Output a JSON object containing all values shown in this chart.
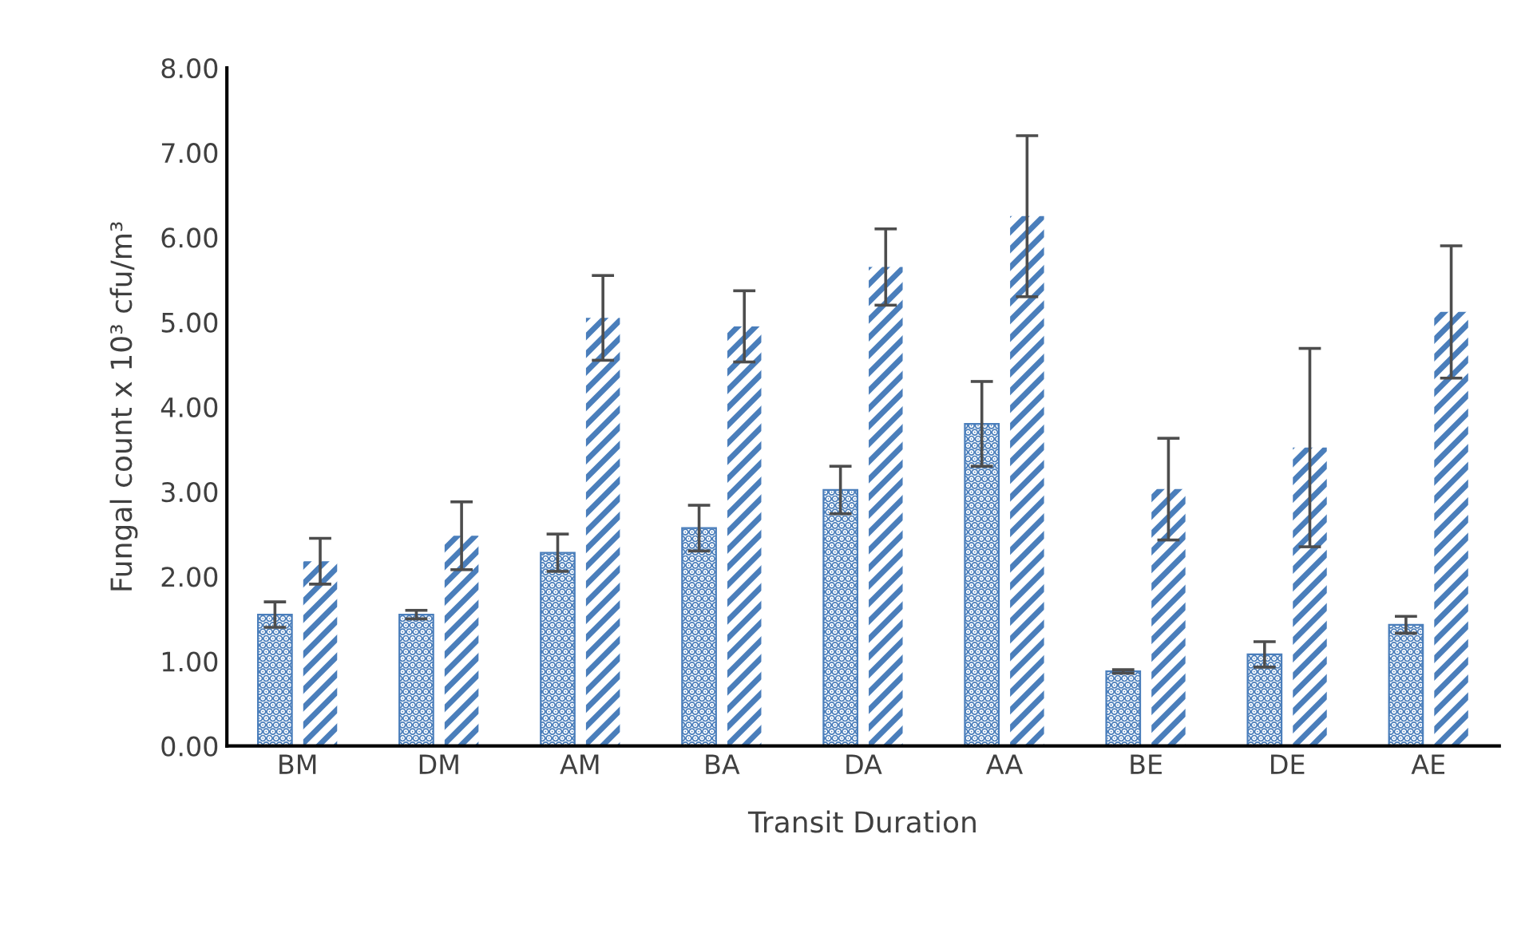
{
  "chart_data": {
    "type": "bar",
    "xlabel": "Transit Duration",
    "ylabel": "Fungal count x 10³ cfu/m³",
    "categories": [
      "BM",
      "DM",
      "AM",
      "BA",
      "DA",
      "AA",
      "BE",
      "DE",
      "AE"
    ],
    "series": [
      {
        "color": "#4a7ebb",
        "values": [
          1.55,
          1.55,
          2.28,
          2.57,
          3.02,
          3.8,
          0.88,
          1.08,
          1.43
        ],
        "errors": [
          0.15,
          0.05,
          0.22,
          0.27,
          0.28,
          0.5,
          0.02,
          0.15,
          0.1
        ]
      },
      {
        "color": "#4a7ebb",
        "values": [
          2.18,
          2.48,
          5.05,
          4.95,
          5.65,
          6.25,
          3.03,
          3.52,
          5.12
        ],
        "errors": [
          0.27,
          0.4,
          0.5,
          0.42,
          0.45,
          0.95,
          0.6,
          1.17,
          0.78
        ]
      }
    ],
    "ylim": [
      0,
      8
    ],
    "yticks": [
      {
        "value": 0,
        "label": "0.00"
      },
      {
        "value": 1,
        "label": "1.00"
      },
      {
        "value": 2,
        "label": "2.00"
      },
      {
        "value": 3,
        "label": "3.00"
      },
      {
        "value": 4,
        "label": "4.00"
      },
      {
        "value": 5,
        "label": "5.00"
      },
      {
        "value": 6,
        "label": "6.00"
      },
      {
        "value": 7,
        "label": "7.00"
      },
      {
        "value": 8,
        "label": "8.00"
      }
    ],
    "grid": false,
    "legend": false
  }
}
